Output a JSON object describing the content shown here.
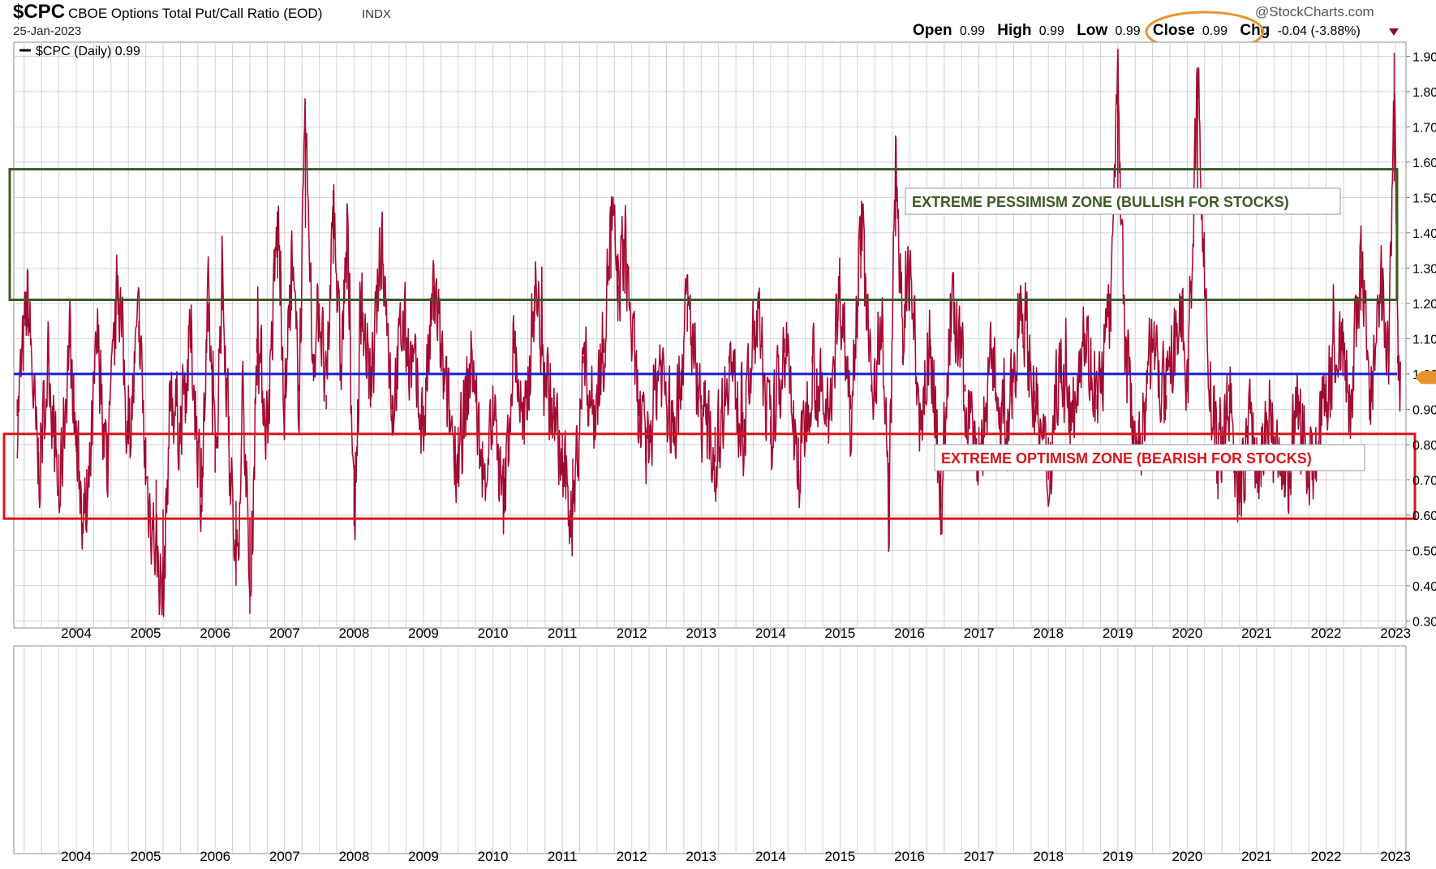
{
  "header": {
    "symbol": "$CPC",
    "description": "CBOE Options Total Put/Call Ratio (EOD)",
    "exchange": "INDX",
    "date": "25-Jan-2023",
    "watermark": "@StockCharts.com",
    "quote": {
      "open_label": "Open",
      "open": "0.99",
      "high_label": "High",
      "high": "0.99",
      "low_label": "Low",
      "low": "0.99",
      "close_label": "Close",
      "close": "0.99",
      "chg_label": "Chg",
      "chg": "-0.04 (-3.88%)"
    },
    "legend": "$CPC (Daily) 0.99"
  },
  "annotations": {
    "pessimism_zone": {
      "label": "EXTREME PESSIMISM ZONE (BULLISH FOR STOCKS)",
      "y_range": [
        1.21,
        1.58
      ],
      "color": "#3b5a24"
    },
    "optimism_zone": {
      "label": "EXTREME OPTIMISM ZONE (BEARISH FOR STOCKS)",
      "y_range": [
        0.59,
        0.83
      ],
      "color": "#d9141a"
    },
    "reference_line": {
      "value": 1.0,
      "color": "#1c1ccf"
    },
    "close_highlight_color": "#e8932c",
    "last_value_arrow_color": "#e8932c"
  },
  "colors": {
    "series": "#c0103e",
    "series_dark": "#3a0a14",
    "grid": "#d2d2d2",
    "axis": "#777777"
  },
  "chart_data": {
    "type": "line",
    "title": "$CPC CBOE Options Total Put/Call Ratio (EOD)",
    "x_type": "year",
    "xlim": [
      2003.1,
      2023.15
    ],
    "ylim": [
      0.28,
      1.94
    ],
    "y_ticks": [
      0.3,
      0.4,
      0.5,
      0.6,
      0.7,
      0.8,
      0.9,
      1.0,
      1.1,
      1.2,
      1.3,
      1.4,
      1.5,
      1.6,
      1.7,
      1.8,
      1.9
    ],
    "y_tick_labels": [
      "0.30",
      "0.40",
      "0.50",
      "0.60",
      "0.70",
      "0.80",
      "0.90",
      "1.00",
      "1.10",
      "1.20",
      "1.30",
      "1.40",
      "1.50",
      "1.60",
      "1.70",
      "1.80",
      "1.90"
    ],
    "x_tick_labels": [
      "2004",
      "2005",
      "2006",
      "2007",
      "2008",
      "2009",
      "2010",
      "2011",
      "2012",
      "2013",
      "2014",
      "2015",
      "2016",
      "2017",
      "2018",
      "2019",
      "2020",
      "2021",
      "2022",
      "2023"
    ],
    "grid": true,
    "series": [
      {
        "name": "$CPC (Daily)",
        "last": 0.99,
        "points": [
          [
            2003.15,
            0.88
          ],
          [
            2003.3,
            1.22
          ],
          [
            2003.45,
            0.7
          ],
          [
            2003.6,
            1.05
          ],
          [
            2003.75,
            0.62
          ],
          [
            2003.9,
            1.12
          ],
          [
            2004.0,
            0.78
          ],
          [
            2004.15,
            0.55
          ],
          [
            2004.3,
            1.1
          ],
          [
            2004.45,
            0.72
          ],
          [
            2004.6,
            1.28
          ],
          [
            2004.75,
            0.8
          ],
          [
            2004.9,
            1.15
          ],
          [
            2005.0,
            0.7
          ],
          [
            2005.15,
            0.5
          ],
          [
            2005.25,
            0.36
          ],
          [
            2005.35,
            0.95
          ],
          [
            2005.5,
            0.85
          ],
          [
            2005.65,
            1.1
          ],
          [
            2005.8,
            0.65
          ],
          [
            2005.9,
            1.2
          ],
          [
            2006.0,
            0.72
          ],
          [
            2006.1,
            1.3
          ],
          [
            2006.2,
            0.8
          ],
          [
            2006.3,
            0.4
          ],
          [
            2006.4,
            0.98
          ],
          [
            2006.5,
            0.32
          ],
          [
            2006.6,
            1.1
          ],
          [
            2006.75,
            0.85
          ],
          [
            2006.9,
            1.45
          ],
          [
            2007.0,
            0.9
          ],
          [
            2007.1,
            1.3
          ],
          [
            2007.2,
            0.95
          ],
          [
            2007.3,
            1.69
          ],
          [
            2007.4,
            1.05
          ],
          [
            2007.5,
            1.2
          ],
          [
            2007.6,
            0.9
          ],
          [
            2007.7,
            1.52
          ],
          [
            2007.8,
            1.0
          ],
          [
            2007.9,
            1.4
          ],
          [
            2008.0,
            0.57
          ],
          [
            2008.1,
            1.2
          ],
          [
            2008.25,
            0.95
          ],
          [
            2008.4,
            1.4
          ],
          [
            2008.55,
            0.9
          ],
          [
            2008.7,
            1.15
          ],
          [
            2008.85,
            1.0
          ],
          [
            2009.0,
            0.85
          ],
          [
            2009.15,
            1.25
          ],
          [
            2009.3,
            0.95
          ],
          [
            2009.5,
            0.75
          ],
          [
            2009.7,
            1.05
          ],
          [
            2009.85,
            0.68
          ],
          [
            2010.0,
            0.9
          ],
          [
            2010.15,
            0.6
          ],
          [
            2010.3,
            1.1
          ],
          [
            2010.45,
            0.8
          ],
          [
            2010.6,
            1.25
          ],
          [
            2010.8,
            0.95
          ],
          [
            2011.0,
            0.72
          ],
          [
            2011.15,
            0.6
          ],
          [
            2011.3,
            1.05
          ],
          [
            2011.45,
            0.88
          ],
          [
            2011.6,
            1.1
          ],
          [
            2011.7,
            1.45
          ],
          [
            2011.8,
            1.25
          ],
          [
            2011.9,
            1.38
          ],
          [
            2012.0,
            1.1
          ],
          [
            2012.1,
            0.88
          ],
          [
            2012.2,
            0.75
          ],
          [
            2012.4,
            1.05
          ],
          [
            2012.6,
            0.82
          ],
          [
            2012.8,
            1.2
          ],
          [
            2013.0,
            0.9
          ],
          [
            2013.2,
            0.75
          ],
          [
            2013.4,
            1.05
          ],
          [
            2013.6,
            0.82
          ],
          [
            2013.8,
            1.18
          ],
          [
            2014.0,
            0.8
          ],
          [
            2014.2,
            1.1
          ],
          [
            2014.4,
            0.7
          ],
          [
            2014.6,
            1.05
          ],
          [
            2014.8,
            0.85
          ],
          [
            2015.0,
            1.25
          ],
          [
            2015.15,
            0.9
          ],
          [
            2015.3,
            1.45
          ],
          [
            2015.45,
            0.95
          ],
          [
            2015.6,
            1.15
          ],
          [
            2015.7,
            0.58
          ],
          [
            2015.8,
            1.65
          ],
          [
            2015.9,
            1.05
          ],
          [
            2016.0,
            1.3
          ],
          [
            2016.15,
            0.85
          ],
          [
            2016.3,
            1.1
          ],
          [
            2016.45,
            0.62
          ],
          [
            2016.6,
            1.2
          ],
          [
            2016.8,
            0.95
          ],
          [
            2017.0,
            0.75
          ],
          [
            2017.2,
            1.05
          ],
          [
            2017.4,
            0.78
          ],
          [
            2017.6,
            1.25
          ],
          [
            2017.8,
            0.92
          ],
          [
            2018.0,
            0.7
          ],
          [
            2018.15,
            1.05
          ],
          [
            2018.3,
            0.85
          ],
          [
            2018.5,
            1.15
          ],
          [
            2018.7,
            0.9
          ],
          [
            2018.9,
            1.2
          ],
          [
            2019.0,
            1.82
          ],
          [
            2019.1,
            1.05
          ],
          [
            2019.3,
            0.78
          ],
          [
            2019.5,
            1.1
          ],
          [
            2019.7,
            0.9
          ],
          [
            2019.9,
            1.2
          ],
          [
            2020.0,
            0.95
          ],
          [
            2020.15,
            1.83
          ],
          [
            2020.3,
            1.0
          ],
          [
            2020.45,
            0.72
          ],
          [
            2020.6,
            0.95
          ],
          [
            2020.75,
            0.6
          ],
          [
            2020.9,
            0.9
          ],
          [
            2021.0,
            0.7
          ],
          [
            2021.2,
            0.88
          ],
          [
            2021.4,
            0.65
          ],
          [
            2021.6,
            0.9
          ],
          [
            2021.8,
            0.72
          ],
          [
            2022.0,
            0.95
          ],
          [
            2022.2,
            1.1
          ],
          [
            2022.35,
            0.9
          ],
          [
            2022.5,
            1.3
          ],
          [
            2022.65,
            0.92
          ],
          [
            2022.8,
            1.25
          ],
          [
            2022.9,
            1.0
          ],
          [
            2022.98,
            1.91
          ],
          [
            2023.03,
            1.05
          ],
          [
            2023.07,
            0.99
          ]
        ]
      }
    ],
    "lower_panel": {
      "x_tick_labels": [
        "2004",
        "2005",
        "2006",
        "2007",
        "2008",
        "2009",
        "2010",
        "2011",
        "2012",
        "2013",
        "2014",
        "2015",
        "2016",
        "2017",
        "2018",
        "2019",
        "2020",
        "2021",
        "2022",
        "2023"
      ]
    }
  }
}
